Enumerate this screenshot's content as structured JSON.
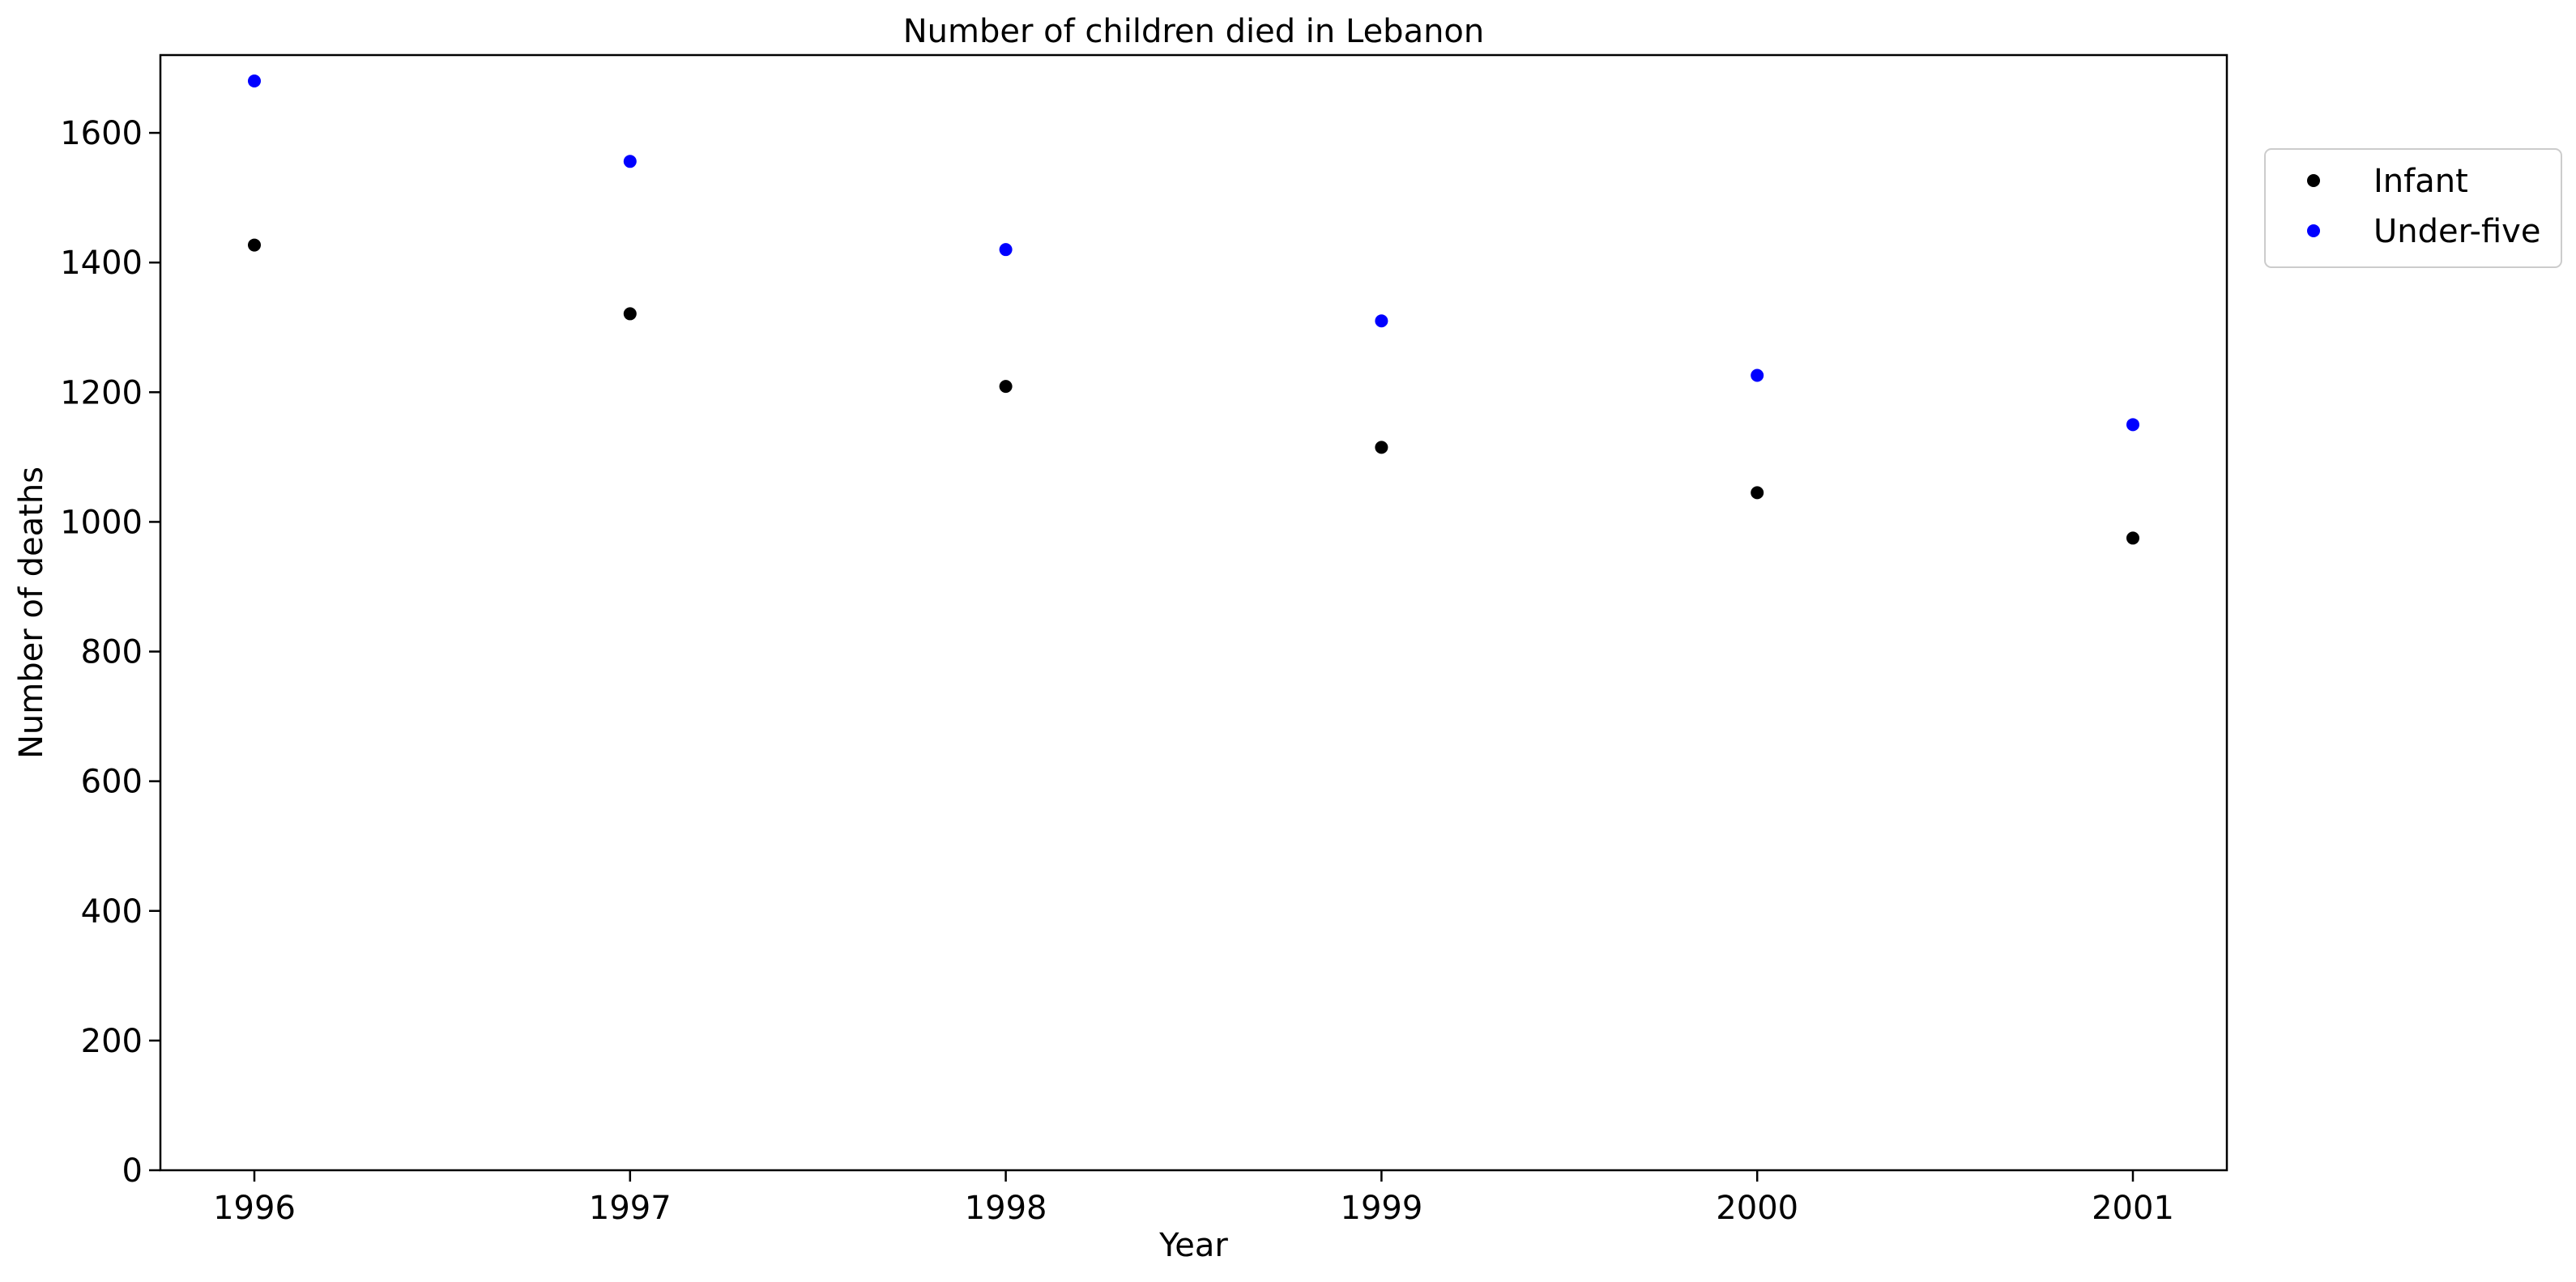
{
  "chart_data": {
    "type": "scatter",
    "title": "Number of children died in Lebanon",
    "xlabel": "Year",
    "ylabel": "Number of deaths",
    "x": [
      "1996",
      "1997",
      "1998",
      "1999",
      "2000",
      "2001"
    ],
    "ylim": [
      0,
      1720
    ],
    "yticks": [
      0,
      200,
      400,
      600,
      800,
      1000,
      1200,
      1400,
      1600
    ],
    "grid": false,
    "legend_position": "top-right, outside the plot area",
    "series": [
      {
        "name": "Infant",
        "color": "#000000",
        "values": [
          1427,
          1321,
          1209,
          1115,
          1045,
          975
        ]
      },
      {
        "name": "Under-five",
        "color": "#0000ff",
        "values": [
          1680,
          1556,
          1420,
          1310,
          1226,
          1150
        ]
      }
    ]
  }
}
